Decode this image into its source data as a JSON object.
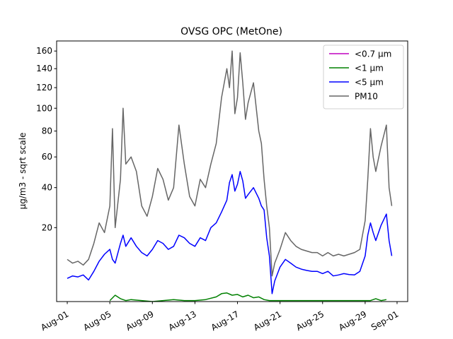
{
  "chart_data": {
    "type": "line",
    "title": "OVSG OPC (MetOne)",
    "xlabel": "",
    "ylabel": "µg/m3 - sqrt scale",
    "yscale": "sqrt",
    "ylim": [
      1.1,
      172
    ],
    "xlim": [
      "2023-07-31T00:00",
      "2023-09-02T00:00"
    ],
    "x_ticks": [
      {
        "date": "2023-08-01",
        "label": "Aug-01"
      },
      {
        "date": "2023-08-05",
        "label": "Aug-05"
      },
      {
        "date": "2023-08-09",
        "label": "Aug-09"
      },
      {
        "date": "2023-08-13",
        "label": "Aug-13"
      },
      {
        "date": "2023-08-17",
        "label": "Aug-17"
      },
      {
        "date": "2023-08-21",
        "label": "Aug-21"
      },
      {
        "date": "2023-08-25",
        "label": "Aug-25"
      },
      {
        "date": "2023-08-29",
        "label": "Aug-29"
      },
      {
        "date": "2023-09-01",
        "label": "Sep-01"
      }
    ],
    "y_ticks": [
      20,
      40,
      60,
      80,
      100,
      120,
      140,
      160
    ],
    "legend_position": "top-right",
    "grid": false,
    "series": [
      {
        "name": "<0.7 µm",
        "color": "#bf00bf",
        "x": [],
        "values": []
      },
      {
        "name": "<1 µm",
        "color": "#008000",
        "x": [
          "2023-08-05T00:00",
          "2023-08-05T12:00",
          "2023-08-06T00:00",
          "2023-08-06T12:00",
          "2023-08-07T00:00",
          "2023-08-08T00:00",
          "2023-08-09T00:00",
          "2023-08-10T00:00",
          "2023-08-11T00:00",
          "2023-08-12T00:00",
          "2023-08-13T00:00",
          "2023-08-14T00:00",
          "2023-08-15T00:00",
          "2023-08-15T12:00",
          "2023-08-16T00:00",
          "2023-08-16T12:00",
          "2023-08-17T00:00",
          "2023-08-17T12:00",
          "2023-08-18T00:00",
          "2023-08-18T12:00",
          "2023-08-19T00:00",
          "2023-08-19T12:00",
          "2023-08-20T00:00",
          "2023-08-29T12:00",
          "2023-08-30T00:00",
          "2023-08-30T12:00",
          "2023-08-31T00:00"
        ],
        "values": [
          1.2,
          1.8,
          1.4,
          1.2,
          1.3,
          1.2,
          1.1,
          1.2,
          1.3,
          1.2,
          1.2,
          1.3,
          1.6,
          2.0,
          2.1,
          1.8,
          1.9,
          1.6,
          1.8,
          1.5,
          1.6,
          1.3,
          1.2,
          1.2,
          1.4,
          1.2,
          1.3
        ]
      },
      {
        "name": "<5 µm",
        "color": "#0000ff",
        "x": [
          "2023-08-01T00:00",
          "2023-08-01T12:00",
          "2023-08-02T00:00",
          "2023-08-02T12:00",
          "2023-08-03T00:00",
          "2023-08-03T12:00",
          "2023-08-04T00:00",
          "2023-08-04T12:00",
          "2023-08-05T00:00",
          "2023-08-05T06:00",
          "2023-08-05T12:00",
          "2023-08-06T00:00",
          "2023-08-06T06:00",
          "2023-08-06T12:00",
          "2023-08-07T00:00",
          "2023-08-07T12:00",
          "2023-08-08T00:00",
          "2023-08-08T12:00",
          "2023-08-09T00:00",
          "2023-08-09T12:00",
          "2023-08-10T00:00",
          "2023-08-10T12:00",
          "2023-08-11T00:00",
          "2023-08-11T12:00",
          "2023-08-12T00:00",
          "2023-08-12T12:00",
          "2023-08-13T00:00",
          "2023-08-13T12:00",
          "2023-08-14T00:00",
          "2023-08-14T12:00",
          "2023-08-15T00:00",
          "2023-08-15T12:00",
          "2023-08-16T00:00",
          "2023-08-16T06:00",
          "2023-08-16T12:00",
          "2023-08-16T18:00",
          "2023-08-17T00:00",
          "2023-08-17T06:00",
          "2023-08-17T12:00",
          "2023-08-17T18:00",
          "2023-08-18T00:00",
          "2023-08-18T12:00",
          "2023-08-19T00:00",
          "2023-08-19T06:00",
          "2023-08-19T12:00",
          "2023-08-19T18:00",
          "2023-08-20T00:00",
          "2023-08-20T06:00",
          "2023-08-20T12:00",
          "2023-08-21T00:00",
          "2023-08-21T12:00",
          "2023-08-22T00:00",
          "2023-08-22T12:00",
          "2023-08-23T00:00",
          "2023-08-23T12:00",
          "2023-08-24T00:00",
          "2023-08-24T12:00",
          "2023-08-25T00:00",
          "2023-08-25T12:00",
          "2023-08-26T00:00",
          "2023-08-26T12:00",
          "2023-08-27T00:00",
          "2023-08-27T12:00",
          "2023-08-28T00:00",
          "2023-08-28T12:00",
          "2023-08-29T00:00",
          "2023-08-29T06:00",
          "2023-08-29T12:00",
          "2023-08-29T18:00",
          "2023-08-30T00:00",
          "2023-08-30T12:00",
          "2023-08-31T00:00",
          "2023-08-31T06:00",
          "2023-08-31T12:00"
        ],
        "values": [
          4.5,
          5.0,
          4.8,
          5.2,
          4.2,
          6.0,
          8.5,
          10.5,
          12.0,
          9.0,
          8.0,
          14.0,
          17.0,
          13.0,
          16.0,
          13.0,
          11.0,
          10.0,
          12.0,
          15.0,
          14.0,
          12.0,
          13.0,
          17.0,
          16.0,
          14.0,
          13.0,
          16.0,
          15.0,
          20.0,
          22.0,
          27.0,
          33.0,
          43.0,
          48.0,
          38.0,
          42.0,
          50.0,
          44.0,
          34.0,
          36.0,
          40.0,
          34.0,
          30.0,
          28.0,
          16.0,
          10.0,
          2.0,
          4.0,
          7.0,
          9.0,
          8.0,
          7.0,
          6.5,
          6.2,
          6.0,
          6.0,
          5.5,
          6.0,
          5.0,
          5.2,
          5.5,
          5.3,
          5.2,
          6.0,
          10.0,
          17.0,
          22.0,
          18.0,
          15.0,
          21.0,
          26.0,
          15.0,
          10.0
        ]
      },
      {
        "name": "PM10",
        "color": "#666666",
        "x": [
          "2023-08-01T00:00",
          "2023-08-01T12:00",
          "2023-08-02T00:00",
          "2023-08-02T12:00",
          "2023-08-03T00:00",
          "2023-08-03T12:00",
          "2023-08-04T00:00",
          "2023-08-04T12:00",
          "2023-08-05T00:00",
          "2023-08-05T06:00",
          "2023-08-05T12:00",
          "2023-08-06T00:00",
          "2023-08-06T06:00",
          "2023-08-06T12:00",
          "2023-08-07T00:00",
          "2023-08-07T12:00",
          "2023-08-08T00:00",
          "2023-08-08T12:00",
          "2023-08-09T00:00",
          "2023-08-09T12:00",
          "2023-08-10T00:00",
          "2023-08-10T12:00",
          "2023-08-11T00:00",
          "2023-08-11T12:00",
          "2023-08-12T00:00",
          "2023-08-12T12:00",
          "2023-08-13T00:00",
          "2023-08-13T12:00",
          "2023-08-14T00:00",
          "2023-08-14T12:00",
          "2023-08-15T00:00",
          "2023-08-15T12:00",
          "2023-08-16T00:00",
          "2023-08-16T06:00",
          "2023-08-16T12:00",
          "2023-08-16T18:00",
          "2023-08-17T00:00",
          "2023-08-17T06:00",
          "2023-08-17T12:00",
          "2023-08-17T18:00",
          "2023-08-18T00:00",
          "2023-08-18T12:00",
          "2023-08-19T00:00",
          "2023-08-19T06:00",
          "2023-08-19T12:00",
          "2023-08-19T18:00",
          "2023-08-20T00:00",
          "2023-08-20T06:00",
          "2023-08-20T12:00",
          "2023-08-21T00:00",
          "2023-08-21T12:00",
          "2023-08-22T00:00",
          "2023-08-22T12:00",
          "2023-08-23T00:00",
          "2023-08-23T12:00",
          "2023-08-24T00:00",
          "2023-08-24T12:00",
          "2023-08-25T00:00",
          "2023-08-25T12:00",
          "2023-08-26T00:00",
          "2023-08-26T12:00",
          "2023-08-27T00:00",
          "2023-08-27T12:00",
          "2023-08-28T00:00",
          "2023-08-28T12:00",
          "2023-08-29T00:00",
          "2023-08-29T06:00",
          "2023-08-29T12:00",
          "2023-08-29T18:00",
          "2023-08-30T00:00",
          "2023-08-30T12:00",
          "2023-08-31T00:00",
          "2023-08-31T06:00",
          "2023-08-31T12:00"
        ],
        "values": [
          9.0,
          8.0,
          8.5,
          7.5,
          9.0,
          14.0,
          22.0,
          18.0,
          30.0,
          82.0,
          20.0,
          45.0,
          100.0,
          55.0,
          60.0,
          50.0,
          30.0,
          25.0,
          35.0,
          52.0,
          45.0,
          33.0,
          40.0,
          85.0,
          55.0,
          35.0,
          30.0,
          45.0,
          40.0,
          55.0,
          70.0,
          110.0,
          140.0,
          120.0,
          160.0,
          95.0,
          110.0,
          158.0,
          125.0,
          90.0,
          105.0,
          125.0,
          80.0,
          70.0,
          45.0,
          30.0,
          20.0,
          5.0,
          8.0,
          12.0,
          18.0,
          15.0,
          13.0,
          12.0,
          11.5,
          11.0,
          11.0,
          10.0,
          11.0,
          10.0,
          10.5,
          10.0,
          10.5,
          11.0,
          12.0,
          23.0,
          45.0,
          82.0,
          60.0,
          50.0,
          68.0,
          85.0,
          40.0,
          30.0
        ]
      }
    ]
  }
}
